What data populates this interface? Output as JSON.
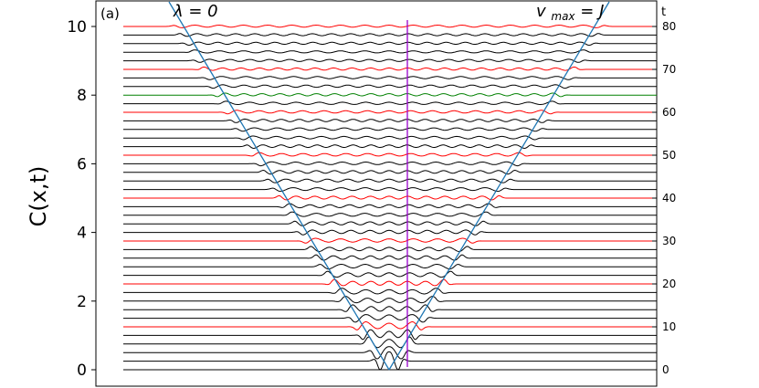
{
  "chart_data": {
    "type": "line",
    "panel_label": "(a)",
    "ylabel": "C(x,t)",
    "xlabel": "",
    "ylim": [
      -0.3,
      10.5
    ],
    "y_ticks": [
      0,
      2,
      4,
      6,
      8,
      10
    ],
    "y_tick_labels": [
      "0",
      "2",
      "4",
      "6",
      "8",
      "10"
    ],
    "right_axis": {
      "label": "t",
      "ticks": [
        0,
        10,
        20,
        30,
        40,
        50,
        60,
        70,
        80
      ],
      "tick_labels": [
        "0",
        "10",
        "20",
        "30",
        "40",
        "50",
        "60",
        "70",
        "80"
      ]
    },
    "t_values": [
      0,
      2,
      4,
      6,
      8,
      10,
      12,
      14,
      16,
      18,
      20,
      22,
      24,
      26,
      28,
      30,
      32,
      34,
      36,
      38,
      40,
      42,
      44,
      46,
      48,
      50,
      52,
      54,
      56,
      58,
      60,
      62,
      64,
      66,
      68,
      70,
      72,
      74,
      76,
      78,
      80
    ],
    "vertical_offset_per_t": 0.125,
    "line_colors": {
      "default": "#000000",
      "highlight": "#ff0000",
      "special": "#008000",
      "lightcone": "#1f77b4",
      "center_line": "#9900cc"
    },
    "highlight_t": [
      10,
      20,
      30,
      40,
      50,
      60,
      70,
      80
    ],
    "special_t": [
      64
    ],
    "annotations": {
      "left_cone": "λ = 0",
      "right_cone_main": "v",
      "right_cone_sub": "max",
      "right_cone_rest": " = J"
    },
    "grid": false,
    "legend": "none"
  }
}
